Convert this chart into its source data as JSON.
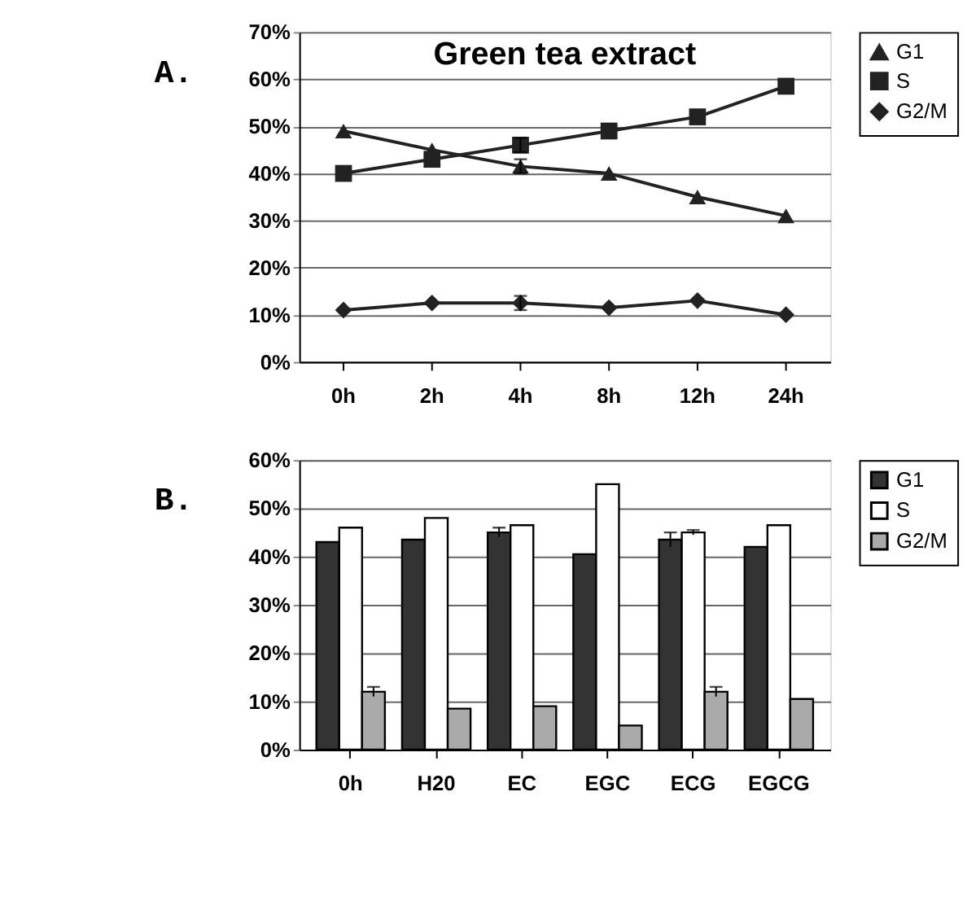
{
  "chart_data": [
    {
      "type": "line",
      "title": "Green tea extract",
      "annotations": [
        "A."
      ],
      "categories": [
        "0h",
        "2h",
        "4h",
        "8h",
        "12h",
        "24h"
      ],
      "ylim": [
        0,
        70
      ],
      "yticks": [
        {
          "value": 0,
          "label": "0%"
        },
        {
          "value": 10,
          "label": "10%"
        },
        {
          "value": 20,
          "label": "20%"
        },
        {
          "value": 30,
          "label": "30%"
        },
        {
          "value": 40,
          "label": "40%"
        },
        {
          "value": 50,
          "label": "50%"
        },
        {
          "value": 60,
          "label": "60%"
        },
        {
          "value": 70,
          "label": "70%"
        }
      ],
      "grid": "y",
      "legend": "right",
      "series": [
        {
          "name": "G1",
          "color": "#222222",
          "marker": "triangle",
          "values": [
            49,
            45,
            41.5,
            40,
            35,
            31
          ],
          "errors": [
            null,
            null,
            1.5,
            null,
            null,
            null
          ]
        },
        {
          "name": "S",
          "color": "#222222",
          "marker": "square",
          "values": [
            40,
            43,
            46,
            49,
            52,
            58.5
          ],
          "errors": [
            null,
            null,
            1.5,
            null,
            null,
            null
          ]
        },
        {
          "name": "G2/M",
          "color": "#222222",
          "marker": "diamond",
          "values": [
            11,
            12.5,
            12.5,
            11.5,
            13,
            10
          ],
          "errors": [
            null,
            null,
            1.5,
            null,
            null,
            null
          ]
        }
      ]
    },
    {
      "type": "bar",
      "annotations": [
        "B."
      ],
      "categories": [
        "0h",
        "H20",
        "EC",
        "EGC",
        "ECG",
        "EGCG"
      ],
      "ylim": [
        0,
        60
      ],
      "yticks": [
        {
          "value": 0,
          "label": "0%"
        },
        {
          "value": 10,
          "label": "10%"
        },
        {
          "value": 20,
          "label": "20%"
        },
        {
          "value": 30,
          "label": "30%"
        },
        {
          "value": 40,
          "label": "40%"
        },
        {
          "value": 50,
          "label": "50%"
        },
        {
          "value": 60,
          "label": "60%"
        }
      ],
      "grid": "y",
      "legend": "right",
      "series": [
        {
          "name": "G1",
          "color": "#333333",
          "values": [
            43,
            43.5,
            45,
            40.5,
            43.5,
            42
          ],
          "errors": [
            null,
            null,
            1,
            null,
            1.5,
            null
          ]
        },
        {
          "name": "S",
          "color": "#ffffff",
          "values": [
            46,
            48,
            46.5,
            55,
            45,
            46.5
          ],
          "errors": [
            null,
            null,
            null,
            null,
            0.5,
            null
          ]
        },
        {
          "name": "G2/M",
          "color": "#aaaaaa",
          "values": [
            12,
            8.5,
            9,
            5,
            12,
            10.5
          ],
          "errors": [
            1,
            null,
            null,
            null,
            1,
            null
          ]
        }
      ]
    }
  ]
}
